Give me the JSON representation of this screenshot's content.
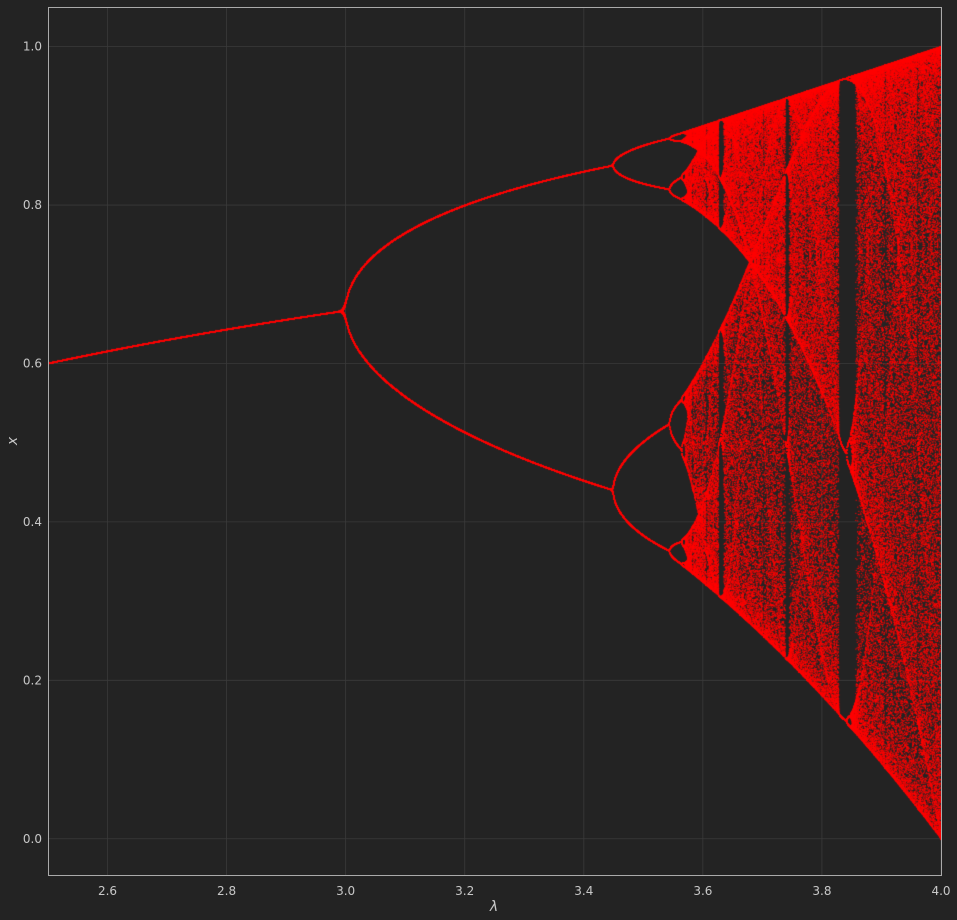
{
  "chart_data": {
    "type": "scatter",
    "title": "",
    "xlabel": "λ",
    "ylabel": "x",
    "xlim": [
      2.5,
      4.0
    ],
    "ylim": [
      -0.047,
      1.05
    ],
    "xticks": [
      {
        "value": 2.6,
        "label": "2.6"
      },
      {
        "value": 2.8,
        "label": "2.8"
      },
      {
        "value": 3.0,
        "label": "3.0"
      },
      {
        "value": 3.2,
        "label": "3.2"
      },
      {
        "value": 3.4,
        "label": "3.4"
      },
      {
        "value": 3.6,
        "label": "3.6"
      },
      {
        "value": 3.8,
        "label": "3.8"
      },
      {
        "value": 4.0,
        "label": "4.0"
      }
    ],
    "yticks": [
      {
        "value": 0.0,
        "label": "0.0"
      },
      {
        "value": 0.2,
        "label": "0.2"
      },
      {
        "value": 0.4,
        "label": "0.4"
      },
      {
        "value": 0.6,
        "label": "0.6"
      },
      {
        "value": 0.8,
        "label": "0.8"
      },
      {
        "value": 1.0,
        "label": "1.0"
      }
    ],
    "grid": true,
    "legend": "none",
    "series": [
      {
        "function": "logistic map x_{n+1} = λ·x_n·(1 − x_n)",
        "lambda_range": [
          2.5,
          4.0
        ],
        "x0": 0.5,
        "transient_iterations": 400,
        "plotted_iterations": 200
      }
    ],
    "colors": {
      "points": "#ff0000",
      "background": "#232323",
      "grid": "#3a3a3a",
      "axes_frame": "#aaaaaa",
      "tick_text": "#c8c8c8"
    }
  }
}
